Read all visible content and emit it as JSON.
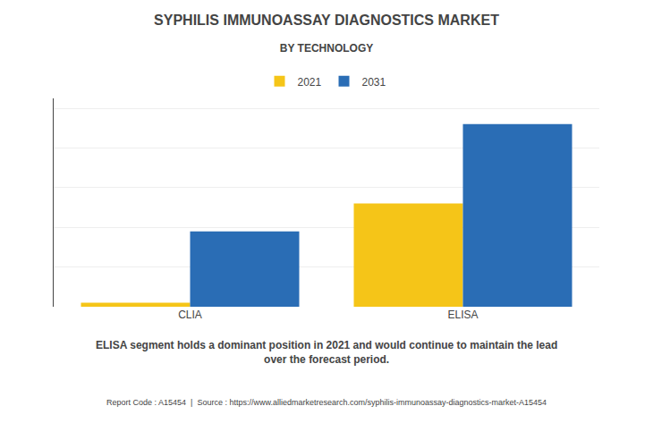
{
  "chart_data": {
    "type": "bar",
    "title": "SYPHILIS IMMUNOASSAY DIAGNOSTICS MARKET",
    "subtitle": "BY TECHNOLOGY",
    "categories": [
      "CLIA",
      "ELISA"
    ],
    "series": [
      {
        "name": "2021",
        "color": "#F5C518",
        "values": [
          0.02,
          0.52
        ]
      },
      {
        "name": "2031",
        "color": "#2A6DB5",
        "values": [
          0.38,
          0.92
        ]
      }
    ],
    "ylim": [
      0,
      1.05
    ],
    "yticks": [
      0,
      0.2,
      0.4,
      0.6,
      0.8,
      1
    ],
    "grid": true,
    "legend": "top",
    "tick_labels": "x",
    "annotations": [
      "ELISA segment holds a dominant position in 2021 and would continue to maintain the lead\nover the forecast period.",
      "Report Code : A15454  |  Source : https://www.alliedmarketresearch.com/syphilis-immunoassay-diagnostics-market-A15454"
    ]
  }
}
